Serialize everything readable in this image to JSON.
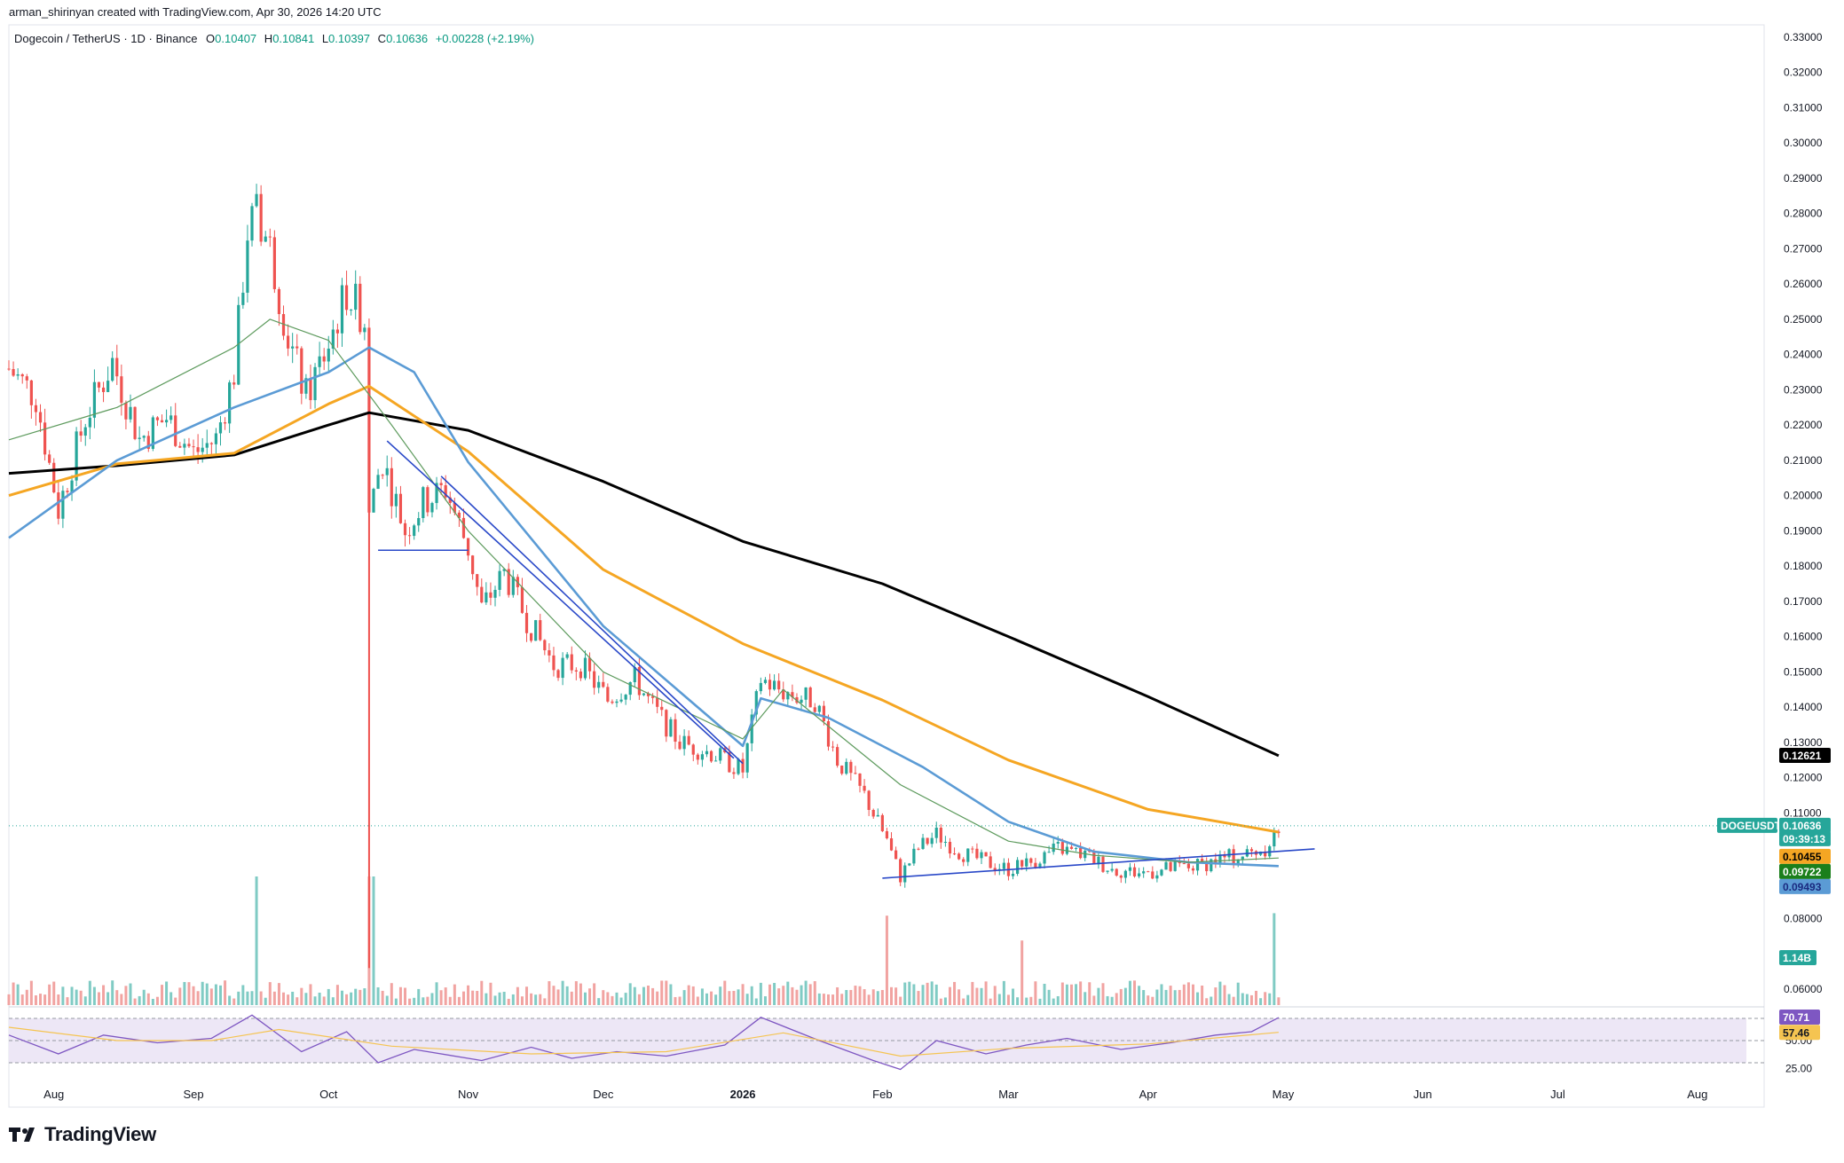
{
  "attribution": "arman_shirinyan created with TradingView.com, Apr 30, 2026 14:20 UTC",
  "legend": {
    "symbol": "Dogecoin / TetherUS · 1D · Binance",
    "open_label": "O",
    "open": "0.10407",
    "high_label": "H",
    "high": "0.10841",
    "low_label": "L",
    "low": "0.10397",
    "close_label": "C",
    "close": "0.10636",
    "change": "+0.00228 (+2.19%)"
  },
  "logo_text": "TradingView",
  "colors": {
    "up": "#26a69a",
    "down": "#ef5350",
    "vol_up": "#80cbc4",
    "vol_down": "#f1a3a1",
    "ma_short": "#5e9b5e",
    "ma_mid": "#5b9bd5",
    "ma_long": "#f5a623",
    "ma_200": "#000000",
    "trendline": "#2948c8",
    "rsi_line": "#7e57c2",
    "rsi_ma": "#f5c451",
    "rsi_band": "#ede7f6"
  },
  "chart_data": {
    "type": "candlestick",
    "price_axis": {
      "range": [
        0.0555,
        0.3335
      ],
      "ticks": [
        "0.33000",
        "0.32000",
        "0.31000",
        "0.30000",
        "0.29000",
        "0.28000",
        "0.27000",
        "0.26000",
        "0.25000",
        "0.24000",
        "0.23000",
        "0.22000",
        "0.21000",
        "0.20000",
        "0.19000",
        "0.18000",
        "0.17000",
        "0.16000",
        "0.15000",
        "0.14000",
        "0.13000",
        "0.12000",
        "0.11000",
        "0.08000",
        "0.06000"
      ]
    },
    "x_axis": {
      "labels": [
        {
          "label": "Aug",
          "date": "2025-08-01"
        },
        {
          "label": "Sep",
          "date": "2025-09-01"
        },
        {
          "label": "Oct",
          "date": "2025-10-01"
        },
        {
          "label": "Nov",
          "date": "2025-11-01"
        },
        {
          "label": "Dec",
          "date": "2025-12-01"
        },
        {
          "label": "2026",
          "date": "2026-01-01",
          "bold": true
        },
        {
          "label": "Feb",
          "date": "2026-02-01"
        },
        {
          "label": "Mar",
          "date": "2026-03-01"
        },
        {
          "label": "Apr",
          "date": "2026-04-01"
        },
        {
          "label": "May",
          "date": "2026-05-01"
        },
        {
          "label": "Jun",
          "date": "2026-06-01"
        },
        {
          "label": "Jul",
          "date": "2026-07-01"
        },
        {
          "label": "Aug",
          "date": "2026-08-01"
        }
      ]
    },
    "price_path": [
      [
        "2025-07-22",
        0.236
      ],
      [
        "2025-07-28",
        0.228
      ],
      [
        "2025-08-02",
        0.196
      ],
      [
        "2025-08-08",
        0.222
      ],
      [
        "2025-08-14",
        0.238
      ],
      [
        "2025-08-20",
        0.216
      ],
      [
        "2025-08-26",
        0.222
      ],
      [
        "2025-09-01",
        0.212
      ],
      [
        "2025-09-06",
        0.216
      ],
      [
        "2025-09-10",
        0.235
      ],
      [
        "2025-09-13",
        0.275
      ],
      [
        "2025-09-15",
        0.28
      ],
      [
        "2025-09-18",
        0.27
      ],
      [
        "2025-09-22",
        0.245
      ],
      [
        "2025-09-26",
        0.228
      ],
      [
        "2025-10-01",
        0.243
      ],
      [
        "2025-10-05",
        0.258
      ],
      [
        "2025-10-09",
        0.25
      ],
      [
        "2025-10-10",
        0.198
      ],
      [
        "2025-10-13",
        0.21
      ],
      [
        "2025-10-18",
        0.19
      ],
      [
        "2025-10-22",
        0.198
      ],
      [
        "2025-10-27",
        0.202
      ],
      [
        "2025-11-01",
        0.185
      ],
      [
        "2025-11-04",
        0.168
      ],
      [
        "2025-11-09",
        0.178
      ],
      [
        "2025-11-14",
        0.165
      ],
      [
        "2025-11-20",
        0.152
      ],
      [
        "2025-11-26",
        0.152
      ],
      [
        "2025-12-02",
        0.142
      ],
      [
        "2025-12-08",
        0.148
      ],
      [
        "2025-12-12",
        0.14
      ],
      [
        "2025-12-18",
        0.13
      ],
      [
        "2025-12-25",
        0.127
      ],
      [
        "2026-01-01",
        0.122
      ],
      [
        "2026-01-05",
        0.148
      ],
      [
        "2026-01-09",
        0.145
      ],
      [
        "2026-01-13",
        0.143
      ],
      [
        "2026-01-17",
        0.142
      ],
      [
        "2026-01-22",
        0.125
      ],
      [
        "2026-01-28",
        0.115
      ],
      [
        "2026-02-02",
        0.102
      ],
      [
        "2026-02-05",
        0.092
      ],
      [
        "2026-02-09",
        0.1
      ],
      [
        "2026-02-13",
        0.104
      ],
      [
        "2026-02-18",
        0.099
      ],
      [
        "2026-02-24",
        0.096
      ],
      [
        "2026-03-01",
        0.094
      ],
      [
        "2026-03-06",
        0.096
      ],
      [
        "2026-03-12",
        0.1
      ],
      [
        "2026-03-18",
        0.098
      ],
      [
        "2026-03-24",
        0.094
      ],
      [
        "2026-03-30",
        0.093
      ],
      [
        "2026-04-05",
        0.094
      ],
      [
        "2026-04-12",
        0.095
      ],
      [
        "2026-04-17",
        0.097
      ],
      [
        "2026-04-22",
        0.098
      ],
      [
        "2026-04-27",
        0.1
      ],
      [
        "2026-04-29",
        0.104
      ],
      [
        "2026-04-30",
        0.10636
      ]
    ],
    "series": [
      {
        "key": "ma_200",
        "last": "0.12621",
        "path": [
          [
            "2025-07-22",
            0.2063
          ],
          [
            "2025-08-15",
            0.2085
          ],
          [
            "2025-09-10",
            0.2115
          ],
          [
            "2025-10-01",
            0.22
          ],
          [
            "2025-10-10",
            0.2235
          ],
          [
            "2025-11-01",
            0.2185
          ],
          [
            "2025-12-01",
            0.204
          ],
          [
            "2026-01-01",
            0.187
          ],
          [
            "2026-02-01",
            0.175
          ],
          [
            "2026-03-01",
            0.16
          ],
          [
            "2026-04-01",
            0.143
          ],
          [
            "2026-04-30",
            0.12621
          ]
        ]
      },
      {
        "key": "ma_long",
        "last": "0.10455",
        "path": [
          [
            "2025-07-22",
            0.2
          ],
          [
            "2025-08-15",
            0.209
          ],
          [
            "2025-09-10",
            0.212
          ],
          [
            "2025-10-01",
            0.226
          ],
          [
            "2025-10-10",
            0.231
          ],
          [
            "2025-11-01",
            0.2125
          ],
          [
            "2025-12-01",
            0.179
          ],
          [
            "2026-01-01",
            0.158
          ],
          [
            "2026-02-01",
            0.142
          ],
          [
            "2026-03-01",
            0.125
          ],
          [
            "2026-04-01",
            0.111
          ],
          [
            "2026-04-30",
            0.10455
          ]
        ]
      },
      {
        "key": "ma_mid",
        "last": "0.09493",
        "path": [
          [
            "2025-07-22",
            0.188
          ],
          [
            "2025-08-15",
            0.21
          ],
          [
            "2025-09-10",
            0.225
          ],
          [
            "2025-10-01",
            0.235
          ],
          [
            "2025-10-10",
            0.242
          ],
          [
            "2025-10-20",
            0.235
          ],
          [
            "2025-11-01",
            0.2095
          ],
          [
            "2025-12-01",
            0.163
          ],
          [
            "2026-01-01",
            0.129
          ],
          [
            "2026-01-05",
            0.1425
          ],
          [
            "2026-01-20",
            0.137
          ],
          [
            "2026-02-10",
            0.123
          ],
          [
            "2026-03-01",
            0.1075
          ],
          [
            "2026-03-20",
            0.099
          ],
          [
            "2026-04-10",
            0.096
          ],
          [
            "2026-04-30",
            0.09493
          ]
        ]
      },
      {
        "key": "ma_short",
        "last": "0.09722",
        "path": [
          [
            "2025-07-22",
            0.2158
          ],
          [
            "2025-08-15",
            0.225
          ],
          [
            "2025-09-10",
            0.242
          ],
          [
            "2025-09-18",
            0.25
          ],
          [
            "2025-10-01",
            0.244
          ],
          [
            "2025-10-15",
            0.22
          ],
          [
            "2025-11-01",
            0.19
          ],
          [
            "2025-12-01",
            0.15
          ],
          [
            "2026-01-01",
            0.131
          ],
          [
            "2026-01-10",
            0.145
          ],
          [
            "2026-02-05",
            0.118
          ],
          [
            "2026-03-01",
            0.102
          ],
          [
            "2026-03-20",
            0.098
          ],
          [
            "2026-04-10",
            0.096
          ],
          [
            "2026-04-30",
            0.09722
          ]
        ]
      }
    ],
    "trendlines": [
      {
        "points": [
          [
            "2025-10-14",
            0.2155
          ],
          [
            "2025-12-30",
            0.1255
          ]
        ]
      },
      {
        "points": [
          [
            "2025-10-26",
            0.2055
          ],
          [
            "2026-01-01",
            0.124
          ]
        ]
      },
      {
        "points": [
          [
            "2025-10-12",
            0.1845
          ],
          [
            "2025-11-01",
            0.1845
          ]
        ]
      },
      {
        "points": [
          [
            "2026-02-01",
            0.0915
          ],
          [
            "2026-05-08",
            0.0998
          ]
        ]
      }
    ],
    "annotations": {
      "current_price": "0.10636",
      "symbol_tag": "DOGEUSDT",
      "countdown": "09:39:13",
      "volume_tag": "1.14B"
    },
    "volume": {
      "last": "1.14B",
      "spikes": [
        [
          "2025-09-15",
          6.2
        ],
        [
          "2025-10-10",
          7.5
        ],
        [
          "2025-10-11",
          5.4
        ],
        [
          "2026-02-02",
          3.6
        ],
        [
          "2026-03-04",
          2.6
        ],
        [
          "2026-04-29",
          3.7
        ]
      ]
    },
    "rsi": {
      "axis_labels": [
        "70.00",
        "50.00",
        "25.00"
      ],
      "range": [
        22.0,
        74.0
      ],
      "last": "70.71",
      "ma_last": "57.46",
      "path": [
        [
          "2025-07-22",
          55
        ],
        [
          "2025-08-02",
          38
        ],
        [
          "2025-08-12",
          55
        ],
        [
          "2025-08-24",
          48
        ],
        [
          "2025-09-05",
          52
        ],
        [
          "2025-09-14",
          73
        ],
        [
          "2025-09-25",
          40
        ],
        [
          "2025-10-05",
          58
        ],
        [
          "2025-10-12",
          30
        ],
        [
          "2025-10-20",
          42
        ],
        [
          "2025-11-04",
          32
        ],
        [
          "2025-11-15",
          44
        ],
        [
          "2025-11-24",
          34
        ],
        [
          "2025-12-04",
          40
        ],
        [
          "2025-12-15",
          36
        ],
        [
          "2025-12-28",
          46
        ],
        [
          "2026-01-05",
          71
        ],
        [
          "2026-01-18",
          50
        ],
        [
          "2026-01-30",
          32
        ],
        [
          "2026-02-05",
          24
        ],
        [
          "2026-02-13",
          50
        ],
        [
          "2026-02-24",
          38
        ],
        [
          "2026-03-05",
          46
        ],
        [
          "2026-03-14",
          52
        ],
        [
          "2026-03-26",
          42
        ],
        [
          "2026-04-06",
          48
        ],
        [
          "2026-04-16",
          55
        ],
        [
          "2026-04-24",
          58
        ],
        [
          "2026-04-30",
          70.71
        ]
      ],
      "ma_path": [
        [
          "2025-07-22",
          62
        ],
        [
          "2025-08-15",
          50
        ],
        [
          "2025-09-05",
          50
        ],
        [
          "2025-09-20",
          60
        ],
        [
          "2025-10-15",
          45
        ],
        [
          "2025-11-15",
          38
        ],
        [
          "2025-12-15",
          40
        ],
        [
          "2026-01-10",
          57
        ],
        [
          "2026-02-05",
          36
        ],
        [
          "2026-03-01",
          43
        ],
        [
          "2026-04-01",
          47
        ],
        [
          "2026-04-30",
          57.46
        ]
      ]
    }
  }
}
